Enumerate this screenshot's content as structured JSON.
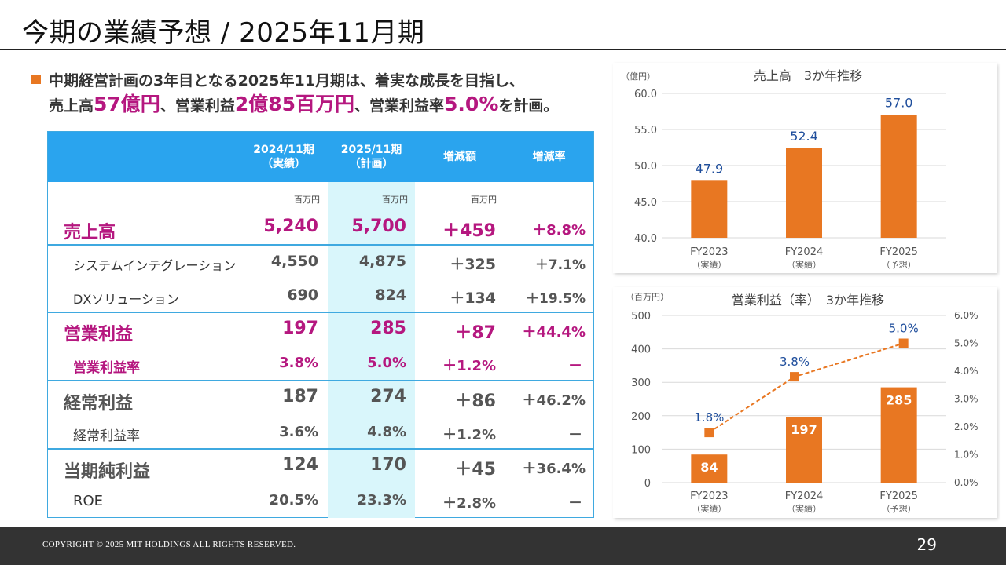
{
  "slide": {
    "title": "今期の業績予想 / 2025年11月期",
    "lead_line1": "中期経営計画の3年目となる2025年11月期は、着実な成長を目指し、",
    "lead_line2": {
      "t1": "売上高",
      "h1": "57億円",
      "t2": "、営業利益",
      "h2": "2億85百万円",
      "t3": "、営業利益率",
      "h3": "5.0%",
      "t4": "を計画。"
    }
  },
  "table": {
    "headers": [
      "2024/11期\n（実績）",
      "2025/11期\n（計画）",
      "増減額",
      "増減率"
    ],
    "units": [
      "百万円",
      "百万円",
      "百万円"
    ],
    "rows": [
      {
        "label": "売上高",
        "v1": "5,240",
        "v2": "5,700",
        "diff": "＋459",
        "rate": "＋8.8%"
      },
      {
        "label": "システムインテグレーション",
        "v1": "4,550",
        "v2": "4,875",
        "diff": "＋325",
        "rate": "＋7.1%"
      },
      {
        "label": "DXソリューション",
        "v1": "690",
        "v2": "824",
        "diff": "＋134",
        "rate": "＋19.5%"
      },
      {
        "label": "営業利益",
        "v1": "197",
        "v2": "285",
        "diff": "＋87",
        "rate": "＋44.4%"
      },
      {
        "label": "営業利益率",
        "v1": "3.8%",
        "v2": "5.0%",
        "diff": "＋1.2%",
        "rate": "－"
      },
      {
        "label": "経常利益",
        "v1": "187",
        "v2": "274",
        "diff": "＋86",
        "rate": "＋46.2%"
      },
      {
        "label": "経常利益率",
        "v1": "3.6%",
        "v2": "4.8%",
        "diff": "＋1.2%",
        "rate": "－"
      },
      {
        "label": "当期純利益",
        "v1": "124",
        "v2": "170",
        "diff": "＋45",
        "rate": "＋36.4%"
      },
      {
        "label": "ROE",
        "v1": "20.5%",
        "v2": "23.3%",
        "diff": "＋2.8%",
        "rate": "－"
      }
    ]
  },
  "colors": {
    "accent_orange": "#e87722",
    "highlight_magenta": "#b5177f",
    "header_blue": "#2aa4ee",
    "label_blue": "#1f4e9c"
  },
  "chart_data": [
    {
      "type": "bar",
      "title": "売上高　3か年推移",
      "ylabel": "（億円）",
      "categories": [
        "FY2023\n（実績）",
        "FY2024\n（実績）",
        "FY2025\n（予想）"
      ],
      "values": [
        47.9,
        52.4,
        57.0
      ],
      "value_labels": [
        "47.9",
        "52.4",
        "57.0"
      ],
      "ylim": [
        40,
        60
      ],
      "yticks": [
        "40.0",
        "45.0",
        "50.0",
        "55.0",
        "60.0"
      ],
      "grid": true
    },
    {
      "type": "bar",
      "title": "営業利益（率）　3か年推移",
      "ylabel": "（百万円）",
      "categories": [
        "FY2023\n（実績）",
        "FY2024\n（実績）",
        "FY2025\n（予想）"
      ],
      "values": [
        84,
        197,
        285
      ],
      "ylim": [
        0,
        500
      ],
      "yticks": [
        "0",
        "100",
        "200",
        "300",
        "400",
        "500"
      ],
      "y2lim": [
        0,
        6
      ],
      "y2ticks": [
        "0.0%",
        "1.0%",
        "2.0%",
        "3.0%",
        "4.0%",
        "5.0%",
        "6.0%"
      ],
      "line_series": {
        "values": [
          1.8,
          3.8,
          5.0
        ],
        "labels": [
          "1.8%",
          "3.8%",
          "5.0%"
        ],
        "style": "dashed"
      },
      "grid": true
    }
  ],
  "footer": {
    "copyright": "COPYRIGHT © 2025 MIT HOLDINGS ALL RIGHTS RESERVED.",
    "page": "29"
  }
}
